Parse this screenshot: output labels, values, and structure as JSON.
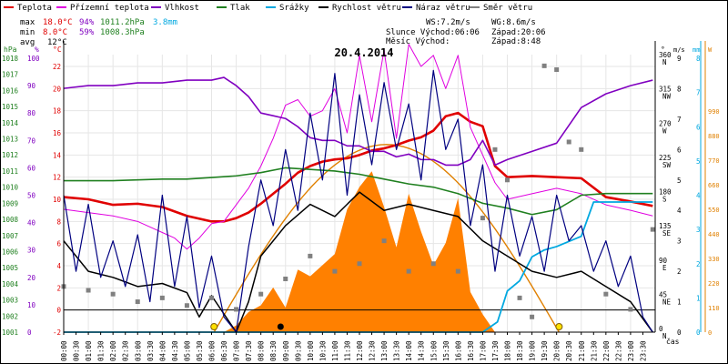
{
  "chart_data": {
    "type": "line",
    "title": "20.4.2014",
    "legend": [
      {
        "label": "Teplota",
        "color": "#e00000"
      },
      {
        "label": "Přízemní teplota",
        "color": "#e000e0"
      },
      {
        "label": "Vlhkost",
        "color": "#8000c0"
      },
      {
        "label": "Tlak",
        "color": "#208020"
      },
      {
        "label": "Srážky",
        "color": "#00a8e0"
      },
      {
        "label": "Rychlost větru",
        "color": "#000000"
      },
      {
        "label": "Náraz větru",
        "color": "#000080"
      },
      {
        "label": "Směr větru",
        "color": "#808080"
      }
    ],
    "stats": {
      "max_label": "max",
      "max_temp": "18.0°C",
      "max_hum": "94%",
      "max_press": "1011.2hPa",
      "rain_total": "3.8mm",
      "min_label": "min",
      "min_temp": "8.0°C",
      "min_hum": "59%",
      "min_press": "1008.3hPa",
      "avg_label": "avg",
      "avg_temp": "12°C",
      "ws": "WS:7.2m/s",
      "wg": "WG:8.6m/s",
      "sun": "Slunce Východ:06:06",
      "sun_set": "Západ:20:06",
      "moon": "Měsíc  Východ:",
      "moon_set": "Západ:8:48"
    },
    "axes": {
      "hpa": {
        "label": "hPa",
        "ticks": [
          "1018",
          "1017",
          "1016",
          "1015",
          "1014",
          "1013",
          "1012",
          "1011",
          "1010",
          "1009",
          "1008",
          "1007",
          "1006",
          "1005",
          "1004",
          "1003",
          "1002",
          "1001"
        ],
        "color": "#208020"
      },
      "pct": {
        "label": "%",
        "ticks": [
          "100",
          "90",
          "80",
          "70",
          "60",
          "50",
          "40",
          "30",
          "20",
          "10",
          "0"
        ],
        "color": "#8000c0"
      },
      "temp": {
        "label": "°C",
        "ticks": [
          "22",
          "20",
          "18",
          "16",
          "14",
          "12",
          "10",
          "8",
          "6",
          "4",
          "2",
          "0",
          "-2"
        ],
        "color": "#e00000"
      },
      "dir": {
        "label": "°",
        "ticks": [
          "360",
          "315",
          "270",
          "225",
          "180",
          "135",
          "90",
          "45",
          "0"
        ],
        "names": [
          "N",
          "NW",
          "W",
          "SW",
          "S",
          "SE",
          "E",
          "NE",
          "N"
        ]
      },
      "ms": {
        "label": "m/s",
        "ticks": [
          "9",
          "8",
          "7",
          "6",
          "5",
          "4",
          "3",
          "2",
          "1",
          "0"
        ]
      },
      "mm": {
        "label": "mm",
        "ticks": [
          "8",
          "7",
          "6",
          "5",
          "4",
          "3",
          "2",
          "1",
          "0"
        ],
        "color": "#00a8e0"
      },
      "w": {
        "label": "W",
        "ticks": [
          "990",
          "880",
          "770",
          "660",
          "550",
          "440",
          "330",
          "220",
          "110",
          "0"
        ],
        "color": "#e08000"
      },
      "x_label": "čas",
      "x_ticks": [
        "00:00",
        "00:30",
        "01:00",
        "01:30",
        "02:00",
        "02:30",
        "03:00",
        "03:30",
        "04:00",
        "04:30",
        "05:00",
        "05:30",
        "06:00",
        "06:30",
        "07:00",
        "07:30",
        "08:00",
        "08:30",
        "09:00",
        "09:30",
        "10:00",
        "10:30",
        "11:00",
        "11:30",
        "12:00",
        "12:30",
        "13:00",
        "13:30",
        "14:00",
        "14:30",
        "15:00",
        "15:30",
        "16:00",
        "16:30",
        "17:00",
        "17:30",
        "18:00",
        "18:30",
        "19:00",
        "19:30",
        "20:00",
        "20:30",
        "21:00",
        "21:30",
        "22:00",
        "22:30",
        "23:00",
        "23:30"
      ]
    },
    "series": [
      {
        "name": "Teplota",
        "color": "#e00000",
        "x": [
          0,
          1,
          2,
          3,
          4,
          5,
          6,
          6.5,
          7,
          7.5,
          8,
          8.5,
          9,
          9.5,
          10,
          10.5,
          11,
          11.5,
          12,
          12.5,
          13,
          13.5,
          14,
          14.5,
          15,
          15.5,
          16,
          16.5,
          17,
          17.5,
          18,
          19,
          20,
          21,
          22,
          23,
          23.9
        ],
        "y": [
          10.2,
          10.0,
          9.5,
          9.6,
          9.3,
          8.5,
          8.0,
          8.0,
          8.3,
          8.8,
          9.6,
          10.5,
          11.4,
          12.4,
          13.0,
          13.4,
          13.6,
          13.7,
          14.0,
          14.4,
          14.6,
          14.9,
          15.3,
          15.6,
          16.2,
          17.5,
          17.8,
          17.0,
          16.6,
          13.0,
          12.0,
          12.1,
          12.0,
          11.9,
          10.2,
          9.8,
          9.4
        ]
      },
      {
        "name": "Přízemní teplota",
        "color": "#e000e0",
        "x": [
          0,
          1,
          2,
          3,
          4,
          4.5,
          5,
          5.5,
          6,
          6.5,
          7,
          7.5,
          8,
          8.5,
          9,
          9.5,
          10,
          10.5,
          11,
          11.5,
          12,
          12.5,
          13,
          13.5,
          14,
          14.5,
          15,
          15.5,
          16,
          16.5,
          17,
          17.5,
          18,
          19,
          20,
          21,
          22,
          23,
          23.9
        ],
        "y": [
          9.1,
          8.8,
          8.5,
          8.0,
          7.0,
          6.5,
          5.5,
          6.5,
          7.8,
          8.0,
          9.5,
          11.0,
          13.0,
          15.5,
          18.5,
          19.0,
          17.5,
          18.0,
          20.0,
          16.0,
          23.0,
          17.0,
          23.5,
          15.5,
          24.0,
          22.0,
          23.0,
          20.0,
          23.0,
          16.5,
          14.0,
          11.5,
          10.0,
          10.5,
          11.0,
          10.5,
          9.5,
          9.0,
          8.5
        ]
      },
      {
        "name": "Vlhkost",
        "color": "#8000c0",
        "x": [
          0,
          1,
          2,
          3,
          4,
          5,
          6,
          6.5,
          7,
          7.5,
          8,
          8.5,
          9,
          9.5,
          10,
          10.5,
          11,
          11.5,
          12,
          12.5,
          13,
          13.5,
          14,
          14.5,
          15,
          15.5,
          16,
          16.5,
          17,
          17.5,
          18,
          19,
          20,
          21,
          22,
          23,
          23.9
        ],
        "y": [
          89,
          90,
          90,
          91,
          91,
          92,
          92,
          93,
          90,
          86,
          80,
          79,
          78,
          75,
          71,
          70,
          70,
          68,
          68,
          66,
          66,
          64,
          65,
          63,
          63,
          61,
          61,
          63,
          70,
          61,
          63,
          66,
          69,
          82,
          87,
          90,
          92
        ]
      },
      {
        "name": "Tlak",
        "color": "#208020",
        "x": [
          0,
          2,
          4,
          5,
          6,
          7,
          8,
          9,
          10,
          11,
          12,
          13,
          14,
          15,
          16,
          17,
          18,
          19,
          20,
          21,
          22,
          23,
          23.9
        ],
        "y": [
          1010.4,
          1010.4,
          1010.5,
          1010.5,
          1010.6,
          1010.7,
          1010.9,
          1011.2,
          1011.1,
          1011.0,
          1010.8,
          1010.5,
          1010.2,
          1010.0,
          1009.6,
          1009.0,
          1008.7,
          1008.3,
          1008.6,
          1009.5,
          1009.6,
          1009.6,
          1009.6
        ]
      },
      {
        "name": "Srážky",
        "color": "#00a8e0",
        "x": [
          0,
          17,
          17.6,
          18.0,
          18.5,
          19,
          19.5,
          20,
          21,
          21.5,
          22,
          23.9
        ],
        "y": [
          0,
          0,
          0.3,
          1.2,
          1.5,
          2.2,
          2.4,
          2.5,
          2.8,
          3.8,
          3.8,
          3.8
        ]
      },
      {
        "name": "Rychlost větru",
        "color": "#000000",
        "x": [
          0,
          1,
          2,
          3,
          4,
          5,
          5.5,
          6,
          7,
          7.5,
          8,
          9,
          10,
          11,
          12,
          13,
          14,
          15,
          16,
          17,
          18,
          19,
          20,
          21,
          22,
          23,
          23.9
        ],
        "y": [
          3.0,
          2.0,
          1.8,
          1.5,
          1.6,
          1.3,
          0.5,
          1.2,
          0.0,
          1.0,
          2.5,
          3.5,
          4.2,
          3.8,
          4.6,
          4.0,
          4.2,
          4.0,
          3.8,
          3.0,
          2.5,
          2.0,
          1.8,
          2.0,
          1.5,
          1.0,
          0.0
        ]
      },
      {
        "name": "Náraz větru",
        "color": "#000080",
        "x": [
          0,
          0.5,
          1,
          1.5,
          2,
          2.5,
          3,
          3.5,
          4,
          4.5,
          5,
          5.5,
          6,
          6.5,
          7,
          7.5,
          8,
          8.5,
          9,
          9.5,
          10,
          10.5,
          11,
          11.5,
          12,
          12.5,
          13,
          13.5,
          14,
          14.5,
          15,
          15.5,
          16,
          16.5,
          17,
          17.5,
          18,
          18.5,
          19,
          19.5,
          20,
          20.5,
          21,
          21.5,
          22,
          22.5,
          23,
          23.5,
          23.9
        ],
        "y": [
          4.5,
          2.0,
          4.2,
          1.8,
          3.0,
          1.5,
          3.2,
          1.0,
          4.5,
          1.5,
          3.8,
          0.8,
          2.5,
          0.5,
          0.0,
          2.8,
          5.0,
          3.5,
          6.0,
          4.0,
          7.2,
          5.0,
          8.5,
          4.5,
          7.8,
          5.5,
          8.2,
          6.0,
          7.5,
          5.0,
          8.6,
          6.0,
          7.0,
          3.5,
          5.5,
          2.0,
          4.5,
          2.5,
          3.8,
          2.0,
          4.5,
          3.0,
          3.5,
          2.0,
          3.0,
          1.5,
          2.5,
          0.5,
          0.0
        ]
      },
      {
        "name": "Směr větru",
        "color": "#808080",
        "x": [
          0,
          1,
          2,
          3,
          4,
          5,
          6,
          7,
          8,
          9,
          10,
          11,
          12,
          13,
          14,
          15,
          16,
          17,
          17.5,
          18,
          18.5,
          19,
          19.5,
          20,
          20.5,
          21,
          22,
          23,
          23.9
        ],
        "y": [
          60,
          55,
          50,
          40,
          45,
          35,
          45,
          30,
          50,
          70,
          100,
          80,
          90,
          120,
          80,
          90,
          80,
          150,
          240,
          200,
          45,
          20,
          350,
          345,
          250,
          240,
          50,
          30,
          135
        ]
      }
    ],
    "solar_radiation": {
      "name": "Sluneční svit",
      "color": "#ff8000",
      "x": [
        6.5,
        7,
        7.5,
        8,
        8.5,
        9,
        9.5,
        10,
        10.5,
        11,
        11.5,
        12,
        12.5,
        13,
        13.5,
        14,
        14.5,
        15,
        15.5,
        16,
        16.5,
        17,
        17.5
      ],
      "y": [
        0,
        30,
        90,
        120,
        200,
        110,
        280,
        250,
        300,
        350,
        550,
        650,
        720,
        560,
        380,
        620,
        450,
        300,
        400,
        600,
        180,
        80,
        0
      ]
    },
    "solar_theoretical": {
      "color": "#e08000",
      "peak_w": 840,
      "rise": 6.1,
      "set": 20.1
    }
  }
}
